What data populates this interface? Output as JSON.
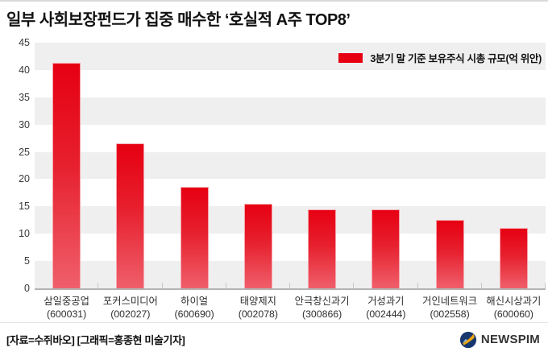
{
  "title": "일부 사회보장펀드가 집중 매수한 ‘호실적 A주 TOP8’",
  "chart_data": {
    "type": "bar",
    "title": "일부 사회보장펀드가 집중 매수한 ‘호실적 A주 TOP8’",
    "legend": "3분기 말 기준 보유주식 시총 규모(억 위안)",
    "legend_position": "top-right",
    "categories": [
      "삼일중공업",
      "포커스미디어",
      "하이얼",
      "태양제지",
      "안극창신과기",
      "거성과기",
      "거인네트워크",
      "해신시상과기"
    ],
    "codes": [
      "(600031)",
      "(002027)",
      "(600690)",
      "(002078)",
      "(300866)",
      "(002444)",
      "(002558)",
      "(600060)"
    ],
    "values": [
      41.3,
      26.5,
      18.6,
      15.5,
      14.4,
      14.4,
      12.5,
      11.0
    ],
    "ylabel": "",
    "xlabel": "",
    "ylim": [
      0,
      45
    ],
    "ytick_step": 5,
    "grid": "banded-horizontal",
    "bar_color_top": "#e60012",
    "bar_color_bottom": "#ef5f6b",
    "band_color": "#efefef",
    "axis_color": "#b3b3b3"
  },
  "footer": {
    "source": "[자료=수쥐바오] [그래픽=홍종현 미술기자]",
    "brand": "NEWSPIM"
  }
}
